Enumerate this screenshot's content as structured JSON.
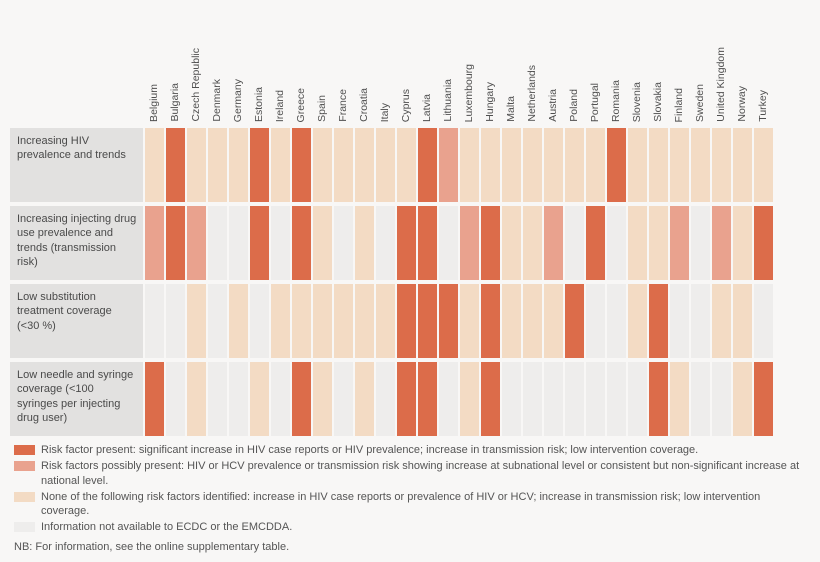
{
  "colors": {
    "present": "#dc6c4a",
    "possibly": "#e9a28e",
    "none": "#f3dbc4",
    "na": "#eeedec",
    "row_label_bg": "#e2e1e0",
    "background": "#f8f7f6"
  },
  "chart_data": {
    "type": "heatmap",
    "columns": [
      "Belgium",
      "Bulgaria",
      "Czech Republic",
      "Denmark",
      "Germany",
      "Estonia",
      "Ireland",
      "Greece",
      "Spain",
      "France",
      "Croatia",
      "Italy",
      "Cyprus",
      "Latvia",
      "Lithuania",
      "Luxembourg",
      "Hungary",
      "Malta",
      "Netherlands",
      "Austria",
      "Poland",
      "Portugal",
      "Romania",
      "Slovenia",
      "Slovakia",
      "Finland",
      "Sweden",
      "United Kingdom",
      "Norway",
      "Turkey"
    ],
    "value_codes": [
      "present",
      "possibly",
      "none",
      "na"
    ],
    "rows": [
      {
        "label": "Increasing HIV prevalence and trends",
        "values": [
          "none",
          "present",
          "none",
          "none",
          "none",
          "present",
          "none",
          "present",
          "none",
          "none",
          "none",
          "none",
          "none",
          "present",
          "possibly",
          "none",
          "none",
          "none",
          "none",
          "none",
          "none",
          "none",
          "present",
          "none",
          "none",
          "none",
          "none",
          "none",
          "none",
          "none"
        ]
      },
      {
        "label": "Increasing injecting drug use prevalence and trends (transmission risk)",
        "values": [
          "possibly",
          "present",
          "possibly",
          "na",
          "na",
          "present",
          "na",
          "present",
          "none",
          "na",
          "none",
          "na",
          "present",
          "present",
          "na",
          "possibly",
          "present",
          "none",
          "none",
          "possibly",
          "na",
          "present",
          "na",
          "none",
          "none",
          "possibly",
          "na",
          "possibly",
          "none",
          "present"
        ]
      },
      {
        "label": "Low substitution treatment coverage (<30 %)",
        "values": [
          "na",
          "na",
          "none",
          "na",
          "none",
          "na",
          "none",
          "none",
          "none",
          "none",
          "none",
          "none",
          "present",
          "present",
          "present",
          "none",
          "present",
          "none",
          "none",
          "none",
          "present",
          "na",
          "na",
          "none",
          "present",
          "na",
          "na",
          "none",
          "none",
          "na"
        ]
      },
      {
        "label": "Low needle and syringe coverage (<100 syringes per injecting drug user)",
        "values": [
          "present",
          "na",
          "none",
          "na",
          "na",
          "none",
          "na",
          "present",
          "none",
          "na",
          "none",
          "na",
          "present",
          "present",
          "na",
          "none",
          "present",
          "na",
          "na",
          "na",
          "na",
          "na",
          "na",
          "na",
          "present",
          "none",
          "na",
          "na",
          "none",
          "present"
        ]
      }
    ]
  },
  "legend": {
    "items": [
      {
        "code": "present",
        "label": "Risk factor present: significant increase in HIV case reports or HIV prevalence; increase in transmission risk; low intervention coverage."
      },
      {
        "code": "possibly",
        "label": "Risk factors possibly present: HIV or HCV prevalence or transmission risk showing increase at subnational level or consistent but non-significant increase at national level."
      },
      {
        "code": "none",
        "label": "None of the following risk factors identified: increase in HIV case reports or prevalence of HIV or HCV; increase in transmission risk; low intervention coverage."
      },
      {
        "code": "na",
        "label": "Information not available to ECDC or the EMCDDA."
      }
    ]
  },
  "note": "NB: For information, see the online supplementary table."
}
